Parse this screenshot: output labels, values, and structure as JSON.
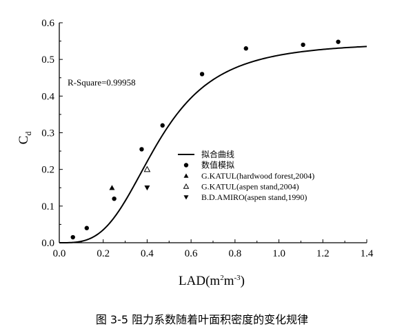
{
  "caption": "图 3-5  阻力系数随着叶面积密度的变化规律",
  "chart_data": {
    "type": "scatter",
    "xlabel": "LAD(m",
    "xlabel_sup1": "2",
    "xlabel_mid": "m",
    "xlabel_sup2": "-3",
    "xlabel_end": ")",
    "ylabel": "C",
    "ylabel_sub": "d",
    "xlim": [
      0.0,
      1.4
    ],
    "ylim": [
      0.0,
      0.6
    ],
    "xticks": [
      "0.0",
      "0.2",
      "0.4",
      "0.6",
      "0.8",
      "1.0",
      "1.2",
      "1.4"
    ],
    "yticks": [
      "0.0",
      "0.1",
      "0.2",
      "0.3",
      "0.4",
      "0.5",
      "0.6"
    ],
    "grid": false,
    "legend_position": "center-right",
    "annotation": "R-Square=0.99958",
    "series": [
      {
        "name": "拟合曲线",
        "kind": "line",
        "color": "#000000",
        "logistic": {
          "A1": 0.0,
          "A2": 0.548,
          "x0": 0.45,
          "p": 3.3
        }
      },
      {
        "name": "数值模拟",
        "kind": "circle",
        "color": "#000000",
        "x": [
          0.062,
          0.125,
          0.25,
          0.375,
          0.47,
          0.65,
          0.85,
          1.11,
          1.27
        ],
        "y": [
          0.015,
          0.04,
          0.12,
          0.255,
          0.32,
          0.46,
          0.53,
          0.54,
          0.548
        ]
      },
      {
        "name": "G.KATUL(hardwood forest,2004)",
        "kind": "triangle-up",
        "color": "#000000",
        "x": [
          0.24
        ],
        "y": [
          0.15
        ]
      },
      {
        "name": "G.KATUL(aspen stand,2004)",
        "kind": "triangle-up-open",
        "color": "#000000",
        "x": [
          0.4
        ],
        "y": [
          0.2
        ]
      },
      {
        "name": "B.D.AMIRO(aspen stand,1990)",
        "kind": "triangle-down",
        "color": "#000000",
        "x": [
          0.4
        ],
        "y": [
          0.15
        ]
      }
    ]
  }
}
